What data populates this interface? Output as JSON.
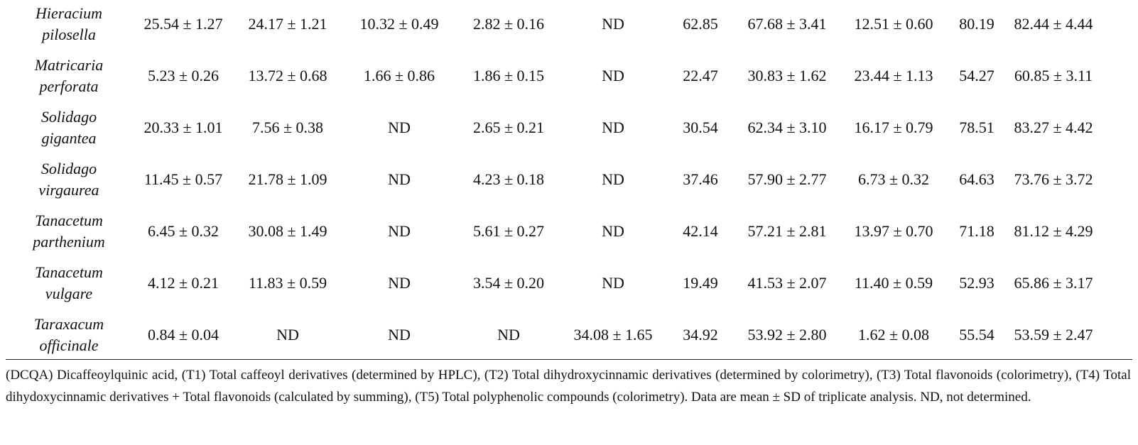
{
  "table": {
    "rows": [
      [
        "Hieracium",
        "pilosella",
        "25.54 ± 1.27",
        "24.17 ± 1.21",
        "10.32 ± 0.49",
        "2.82 ± 0.16",
        "ND",
        "62.85",
        "67.68 ± 3.41",
        "12.51 ± 0.60",
        "80.19",
        "82.44 ± 4.44"
      ],
      [
        "Matricaria",
        "perforata",
        "5.23 ± 0.26",
        "13.72 ± 0.68",
        "1.66 ± 0.86",
        "1.86 ± 0.15",
        "ND",
        "22.47",
        "30.83 ± 1.62",
        "23.44 ± 1.13",
        "54.27",
        "60.85 ± 3.11"
      ],
      [
        "Solidago",
        "gigantea",
        "20.33 ± 1.01",
        "7.56 ± 0.38",
        "ND",
        "2.65 ± 0.21",
        "ND",
        "30.54",
        "62.34 ± 3.10",
        "16.17 ± 0.79",
        "78.51",
        "83.27 ± 4.42"
      ],
      [
        "Solidago",
        "virgaurea",
        "11.45 ± 0.57",
        "21.78 ± 1.09",
        "ND",
        "4.23 ± 0.18",
        "ND",
        "37.46",
        "57.90 ± 2.77",
        "6.73 ± 0.32",
        "64.63",
        "73.76 ± 3.72"
      ],
      [
        "Tanacetum",
        "parthenium",
        "6.45 ± 0.32",
        "30.08 ± 1.49",
        "ND",
        "5.61 ± 0.27",
        "ND",
        "42.14",
        "57.21 ± 2.81",
        "13.97 ± 0.70",
        "71.18",
        "81.12 ± 4.29"
      ],
      [
        "Tanacetum",
        "vulgare",
        "4.12 ± 0.21",
        "11.83 ± 0.59",
        "ND",
        "3.54 ± 0.20",
        "ND",
        "19.49",
        "41.53 ± 2.07",
        "11.40 ± 0.59",
        "52.93",
        "65.86 ± 3.17"
      ],
      [
        "Taraxacum",
        "officinale",
        "0.84 ± 0.04",
        "ND",
        "ND",
        "ND",
        "34.08 ± 1.65",
        "34.92",
        "53.92 ± 2.80",
        "1.62 ± 0.08",
        "55.54",
        "53.59 ± 2.47"
      ]
    ]
  },
  "footnote": "(DCQA) Dicaffeoylquinic acid, (T1) Total caffeoyl derivatives (determined by HPLC), (T2) Total dihydroxycinnamic derivatives (determined by colorimetry), (T3) Total flavonoids (colorimetry), (T4) Total dihydoxycinnamic derivatives + Total flavonoids (calculated by summing), (T5) Total polyphenolic compounds (colorimetry). Data are mean ± SD of triplicate analysis. ND, not determined."
}
